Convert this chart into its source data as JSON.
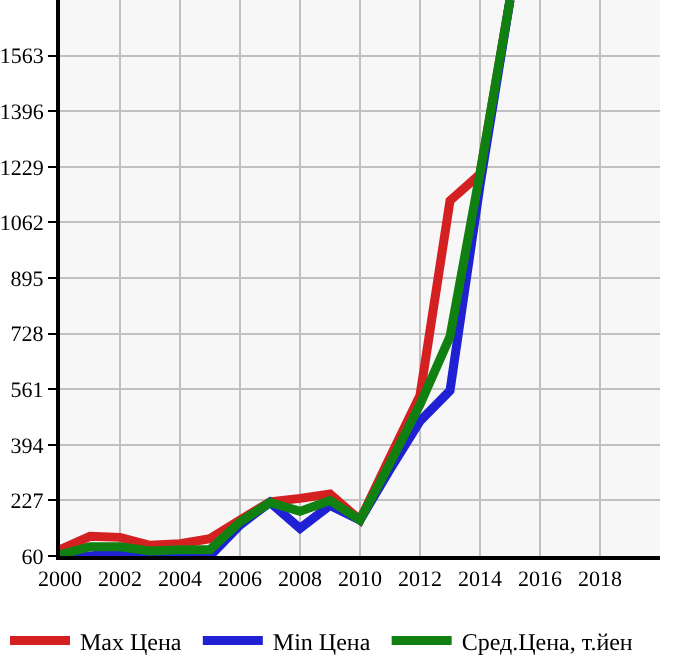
{
  "chart_data": {
    "type": "line",
    "x": [
      2000,
      2001,
      2002,
      2003,
      2004,
      2005,
      2006,
      2007,
      2008,
      2009,
      2010,
      2011,
      2012,
      2013,
      2014,
      2015
    ],
    "series": [
      {
        "name": "Max Цена",
        "color": "#d42020",
        "values": [
          79,
          119,
          116,
          92,
          97,
          112,
          168,
          223,
          233,
          246,
          168,
          357,
          542,
          1127,
          1207,
          1730
        ]
      },
      {
        "name": "Min Цена",
        "color": "#2020d4",
        "values": [
          60,
          60,
          69,
          60,
          64,
          60,
          153,
          221,
          143,
          212,
          168,
          320,
          465,
          557,
          1173,
          1730
        ]
      },
      {
        "name": "Сред.Цена, т.йен",
        "color": "#108010",
        "values": [
          64,
          88,
          88,
          75,
          79,
          79,
          162,
          221,
          194,
          227,
          168,
          338,
          515,
          719,
          1210,
          1730
        ]
      }
    ],
    "xlim": [
      2000,
      2020
    ],
    "xticks": [
      2000,
      2002,
      2004,
      2006,
      2008,
      2010,
      2012,
      2014,
      2016,
      2018
    ],
    "ylim": [
      60,
      1730
    ],
    "yticks": [
      60,
      227,
      394,
      561,
      728,
      895,
      1062,
      1229,
      1396,
      1563
    ],
    "grid": true,
    "legend": "bottom",
    "marker": "none",
    "line_style": "solid"
  }
}
